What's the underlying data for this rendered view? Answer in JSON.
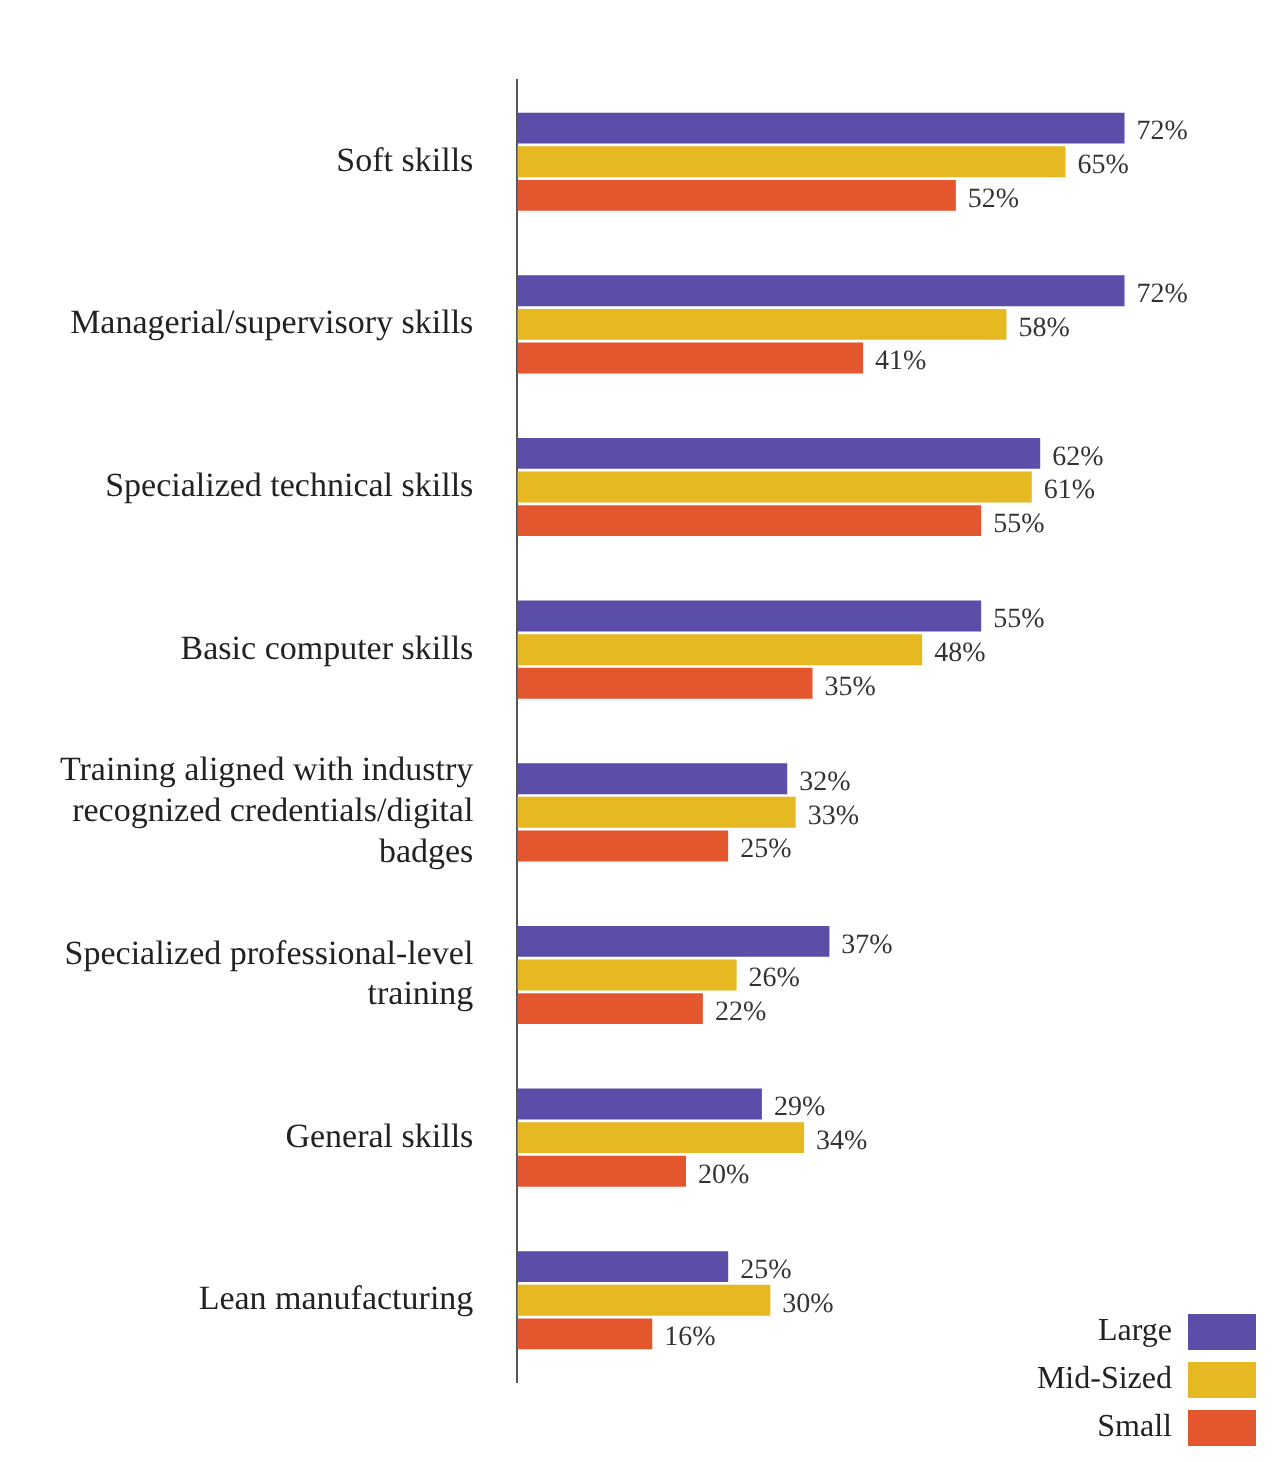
{
  "chart_data": {
    "type": "bar",
    "orientation": "horizontal",
    "categories": [
      "Soft skills",
      "Managerial/supervisory skills",
      "Specialized technical skills",
      "Basic computer skills",
      "Training aligned with industry recognized credentials/digital badges",
      "Specialized professional-level training",
      "General skills",
      "Lean manufacturing"
    ],
    "series": [
      {
        "name": "Large",
        "color": "#5b4ea8",
        "values": [
          72,
          72,
          62,
          55,
          32,
          37,
          29,
          25
        ],
        "value_labels": [
          "72%",
          "72%",
          "62%",
          "55%",
          "32%",
          "37%",
          "29%",
          "25%"
        ]
      },
      {
        "name": "Mid-Sized",
        "color": "#e6b821",
        "values": [
          65,
          58,
          61,
          48,
          33,
          26,
          34,
          30
        ],
        "value_labels": [
          "65%",
          "58%",
          "61%",
          "48%",
          "33%",
          "26%",
          "34%",
          "30%"
        ]
      },
      {
        "name": "Small",
        "color": "#e4572e",
        "values": [
          52,
          41,
          55,
          35,
          25,
          22,
          20,
          16
        ],
        "value_labels": [
          "52%",
          "41%",
          "55%",
          "35%",
          "25%",
          "22%",
          "20%",
          "16%"
        ]
      }
    ],
    "legend": "bottom right",
    "grid": false
  }
}
